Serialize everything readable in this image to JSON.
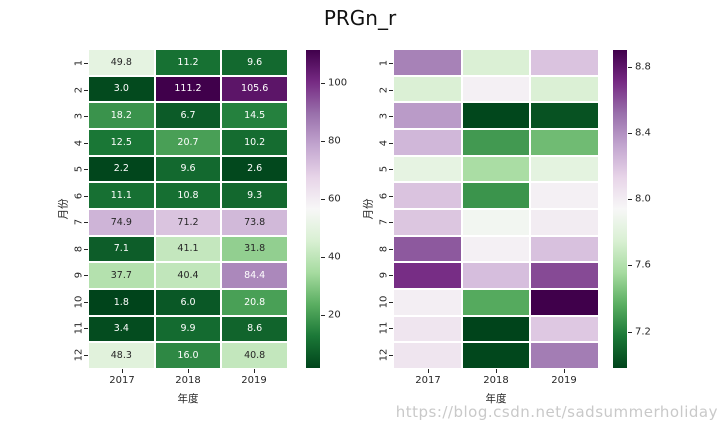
{
  "title": "PRGn_r",
  "watermark": "https://blog.csdn.net/sadsummerholiday",
  "colors": {
    "figure_bg": "#ffffff",
    "cmap_name": "PRGn_r",
    "cmap_stops": [
      "#00441b",
      "#1b7837",
      "#5aae61",
      "#a6dba0",
      "#d9f0d3",
      "#f7f7f7",
      "#e7d4e8",
      "#c2a5cf",
      "#9970ab",
      "#762a83",
      "#40004b"
    ],
    "annot_dark": "#262626",
    "annot_light": "#ffffff",
    "tick_color": "#262626",
    "watermark_color": "#c9c9c9"
  },
  "chart_data": [
    {
      "type": "heatmap",
      "colormap": "PRGn_r",
      "xlabel": "年度",
      "ylabel": "月份",
      "x_categories": [
        "2017",
        "2018",
        "2019"
      ],
      "y_categories": [
        "1",
        "2",
        "3",
        "4",
        "5",
        "6",
        "7",
        "8",
        "9",
        "10",
        "11",
        "12"
      ],
      "annotated": true,
      "annot_format": "0.1f",
      "vmin": 1.8,
      "vmax": 111.2,
      "legend_position": "right-colorbar",
      "colorbar_ticks": [
        {
          "v": 20,
          "label": "20"
        },
        {
          "v": 40,
          "label": "40"
        },
        {
          "v": 60,
          "label": "60"
        },
        {
          "v": 80,
          "label": "80"
        },
        {
          "v": 100,
          "label": "100"
        }
      ],
      "values": [
        [
          49.8,
          11.2,
          9.6
        ],
        [
          3.0,
          111.2,
          105.6
        ],
        [
          18.2,
          6.7,
          14.5
        ],
        [
          12.5,
          20.7,
          10.2
        ],
        [
          2.2,
          9.6,
          2.6
        ],
        [
          11.1,
          10.8,
          9.3
        ],
        [
          74.9,
          71.2,
          73.8
        ],
        [
          7.1,
          41.1,
          31.8
        ],
        [
          37.7,
          40.4,
          84.4
        ],
        [
          1.8,
          6.0,
          20.8
        ],
        [
          3.4,
          9.9,
          8.6
        ],
        [
          48.3,
          16.0,
          40.8
        ]
      ]
    },
    {
      "type": "heatmap",
      "colormap": "PRGn_r",
      "xlabel": "年度",
      "ylabel": "月份",
      "x_categories": [
        "2017",
        "2018",
        "2019"
      ],
      "y_categories": [
        "1",
        "2",
        "3",
        "4",
        "5",
        "6",
        "7",
        "8",
        "9",
        "10",
        "11",
        "12"
      ],
      "annotated": false,
      "vmin": 6.98,
      "vmax": 8.9,
      "legend_position": "right-colorbar",
      "colorbar_ticks": [
        {
          "v": 7.2,
          "label": "7.2"
        },
        {
          "v": 7.6,
          "label": "7.6"
        },
        {
          "v": 8.0,
          "label": "8.0"
        },
        {
          "v": 8.4,
          "label": "8.4"
        },
        {
          "v": 8.8,
          "label": "8.8"
        }
      ],
      "values": [
        [
          8.45,
          7.76,
          8.2
        ],
        [
          7.76,
          7.98,
          7.76
        ],
        [
          8.36,
          6.99,
          7.03
        ],
        [
          8.25,
          7.29,
          7.42
        ],
        [
          7.83,
          7.57,
          7.82
        ],
        [
          8.2,
          7.27,
          7.98
        ],
        [
          8.19,
          7.91,
          8.0
        ],
        [
          8.58,
          7.98,
          8.21
        ],
        [
          8.7,
          8.22,
          8.62
        ],
        [
          7.99,
          7.35,
          8.9
        ],
        [
          8.04,
          6.98,
          8.18
        ],
        [
          8.04,
          6.99,
          8.47
        ]
      ]
    }
  ]
}
